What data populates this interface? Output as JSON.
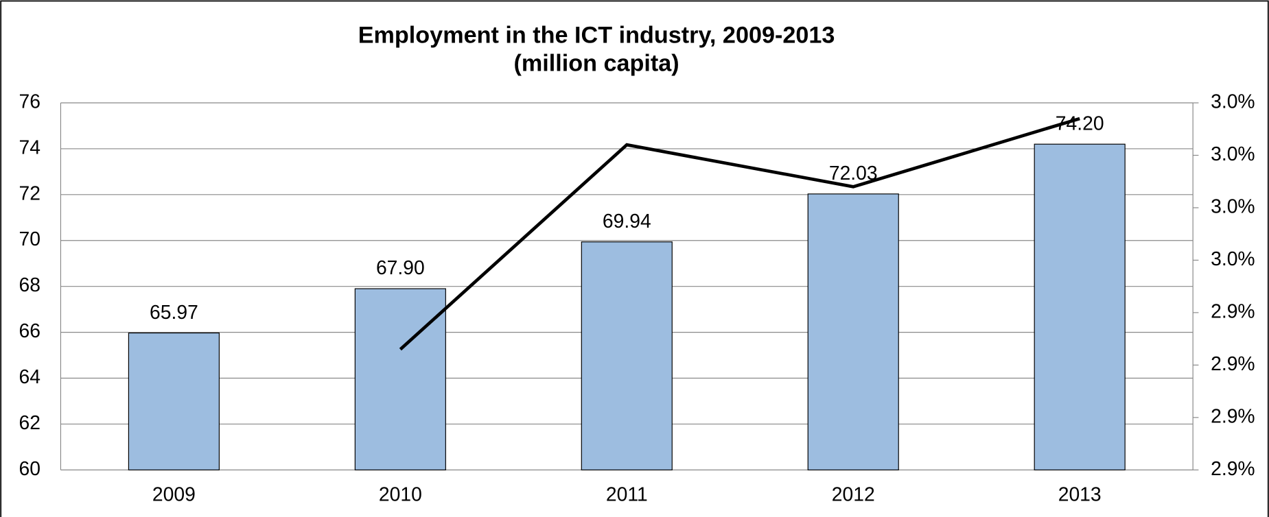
{
  "chart_data": {
    "type": "bar_line",
    "title": "Employment in the ICT industry, 2009-2013",
    "subtitle": "(million capita)",
    "categories": [
      "2009",
      "2010",
      "2011",
      "2012",
      "2013"
    ],
    "series": [
      {
        "type": "bar",
        "color": "#9dbde0",
        "values": [
          65.97,
          67.9,
          69.94,
          72.03,
          74.2
        ],
        "value_labels": [
          "65.97",
          "67.90",
          "69.94",
          "72.03",
          "74.20"
        ]
      },
      {
        "type": "line",
        "color": "#000000",
        "axis": "y2",
        "values": [
          null,
          2.933,
          2.972,
          2.964,
          2.977
        ]
      }
    ],
    "ylim": [
      60,
      76
    ],
    "yticks": [
      60,
      62,
      64,
      66,
      68,
      70,
      72,
      74,
      76
    ],
    "y2lim": [
      2.91,
      2.98
    ],
    "y2ticks": [
      {
        "value": 2.91,
        "label": "2.9%"
      },
      {
        "value": 2.92,
        "label": "2.9%"
      },
      {
        "value": 2.93,
        "label": "2.9%"
      },
      {
        "value": 2.94,
        "label": "2.9%"
      },
      {
        "value": 2.95,
        "label": "3.0%"
      },
      {
        "value": 2.96,
        "label": "3.0%"
      },
      {
        "value": 2.97,
        "label": "3.0%"
      },
      {
        "value": 2.98,
        "label": "3.0%"
      }
    ],
    "grid": true
  }
}
